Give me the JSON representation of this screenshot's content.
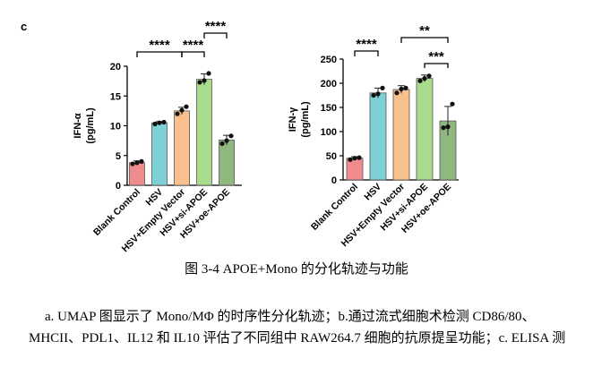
{
  "panel_label": "c",
  "caption": "图 3-4 APOE+Mono 的分化轨迹与功能",
  "body_text": {
    "line1": "a. UMAP 图显示了 Mono/MΦ 的时序性分化轨迹；b.通过流式细胞术检测 CD86/80、",
    "line2": "MHCII、PDL1、IL12 和 IL10 评估了不同组中 RAW264.7 细胞的抗原提呈功能；c. ELISA 测"
  },
  "colors": {
    "blank_control": "#f08b8e",
    "hsv": "#7fd0d6",
    "empty_vector": "#f9c08e",
    "si_apoe": "#a8dc8c",
    "oe_apoe": "#8fb87f"
  },
  "chart_data": [
    {
      "type": "bar",
      "ylabel_line1": "IFN-α",
      "ylabel_line2": "(pg/mL)",
      "ylim": [
        0,
        20
      ],
      "yticks": [
        "0",
        "5",
        "10",
        "15",
        "20"
      ],
      "categories": [
        "Blank Control",
        "HSV",
        "HSV+Empty Vector",
        "HSV+si-APOE",
        "HSV+oe-APOE"
      ],
      "values": [
        3.8,
        10.5,
        12.5,
        17.8,
        7.6
      ],
      "errors": [
        0.3,
        0.2,
        0.6,
        0.9,
        0.8
      ],
      "points": [
        [
          3.6,
          3.8,
          4.0
        ],
        [
          10.3,
          10.5,
          10.6
        ],
        [
          12.0,
          12.6,
          13.2
        ],
        [
          17.3,
          17.6,
          18.8
        ],
        [
          7.0,
          7.5,
          8.3
        ]
      ],
      "significance": [
        {
          "from": 0,
          "to": 2,
          "label": "****"
        },
        {
          "from": 2,
          "to": 3,
          "label": "****"
        },
        {
          "from": 3,
          "to": 4,
          "label": "****"
        }
      ]
    },
    {
      "type": "bar",
      "ylabel_line1": "IFN-γ",
      "ylabel_line2": "(pg/mL)",
      "ylim": [
        0,
        250
      ],
      "yticks": [
        "0",
        "50",
        "100",
        "150",
        "200",
        "250"
      ],
      "categories": [
        "Blank Control",
        "HSV",
        "HSV+Empty Vector",
        "HSV+si-APOE",
        "HSV+oe-APOE"
      ],
      "values": [
        45,
        180,
        187,
        210,
        122
      ],
      "errors": [
        3,
        10,
        8,
        7,
        30
      ],
      "points": [
        [
          42,
          45,
          46
        ],
        [
          175,
          178,
          190
        ],
        [
          180,
          188,
          190
        ],
        [
          205,
          210,
          215
        ],
        [
          108,
          110,
          157
        ]
      ],
      "significance": [
        {
          "from": 0,
          "to": 1,
          "label": "****"
        },
        {
          "from": 2,
          "to": 4,
          "label": "**"
        },
        {
          "from": 3,
          "to": 4,
          "label": "***"
        }
      ]
    }
  ]
}
